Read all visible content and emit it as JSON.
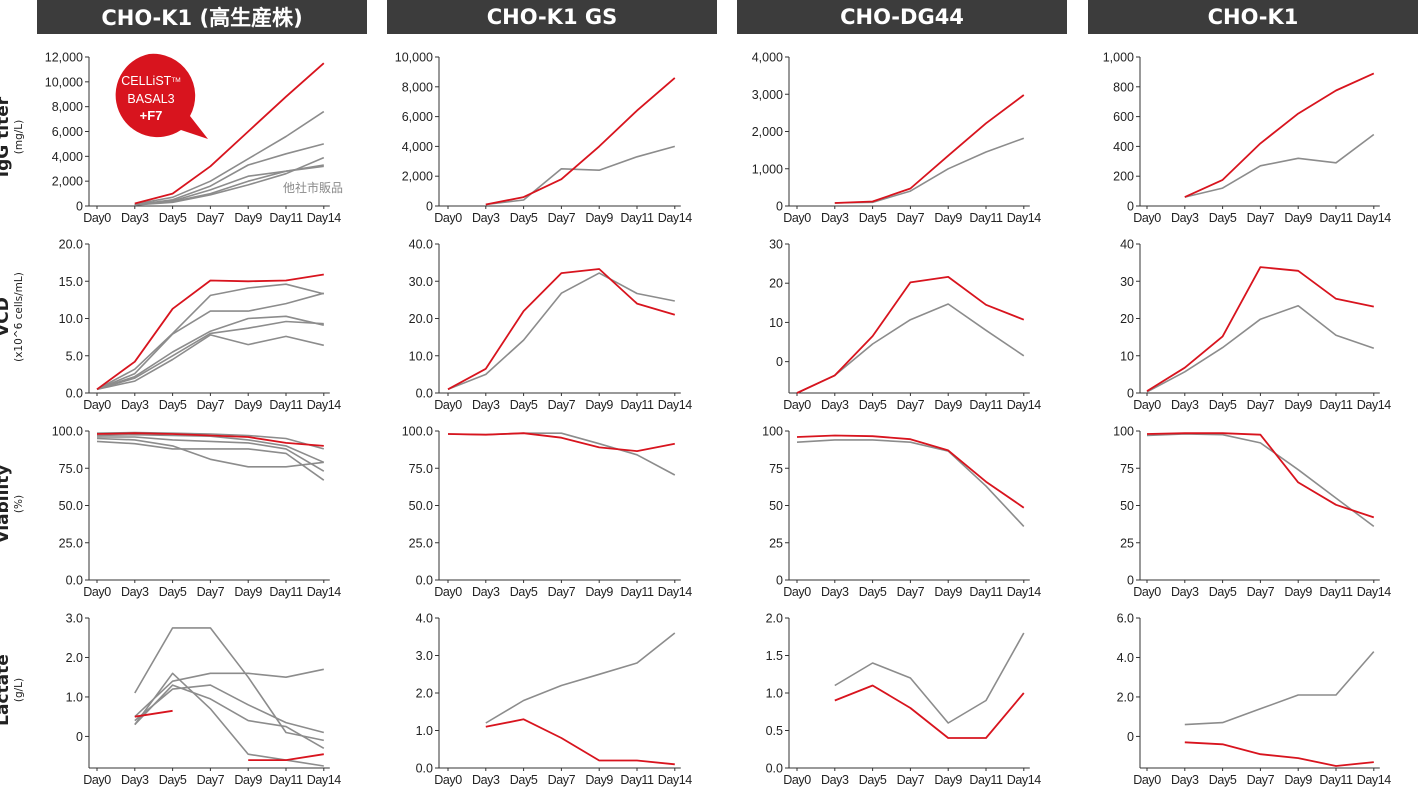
{
  "colors": {
    "header_bg": "#3c3c3c",
    "target": "#d8141e",
    "competitor": "#8c8c8c",
    "axis": "#333333"
  },
  "columns": [
    {
      "title": "CHO-K1 (高生産株)"
    },
    {
      "title": "CHO-K1 GS"
    },
    {
      "title": "CHO-DG44"
    },
    {
      "title": "CHO-K1"
    }
  ],
  "rows": [
    {
      "label": "IgG titer",
      "unit": "(mg/L)"
    },
    {
      "label": "VCD",
      "unit": "(x10^6 cells/mL)"
    },
    {
      "label": "Viability",
      "unit": "(%)"
    },
    {
      "label": "Lactate",
      "unit": "(g/L)"
    }
  ],
  "callout": {
    "line1": "CELLiST",
    "tm": "TM",
    "line2": "BASAL3",
    "line3": "+F7"
  },
  "annotation": "他社市販品",
  "chart_data": [
    {
      "type": "line",
      "col": 0,
      "row": 0,
      "categories": [
        "Day0",
        "Day3",
        "Day5",
        "Day7",
        "Day9",
        "Day11",
        "Day14"
      ],
      "ylim": [
        0,
        12000
      ],
      "yticks": [
        "0",
        "2,000",
        "4,000",
        "6,000",
        "8,000",
        "10,000",
        "12,000"
      ],
      "series": [
        {
          "name": "CELLiST BASAL3 +F7",
          "highlight": true,
          "values": [
            null,
            200,
            1000,
            3200,
            6000,
            8800,
            11500
          ]
        },
        {
          "highlight": false,
          "values": [
            null,
            150,
            700,
            2000,
            3800,
            5600,
            7600
          ]
        },
        {
          "highlight": false,
          "values": [
            null,
            100,
            500,
            1600,
            3300,
            4200,
            5000
          ]
        },
        {
          "highlight": false,
          "values": [
            null,
            100,
            400,
            1300,
            2400,
            2800,
            3300
          ]
        },
        {
          "highlight": false,
          "values": [
            null,
            80,
            300,
            900,
            1700,
            2600,
            3900
          ]
        },
        {
          "highlight": false,
          "values": [
            null,
            100,
            350,
            1000,
            2000,
            2800,
            3200
          ]
        }
      ]
    },
    {
      "type": "line",
      "col": 1,
      "row": 0,
      "categories": [
        "Day0",
        "Day3",
        "Day5",
        "Day7",
        "Day9",
        "Day11",
        "Day14"
      ],
      "ylim": [
        0,
        10000
      ],
      "yticks": [
        "0",
        "2,000",
        "4,000",
        "6,000",
        "8,000",
        "10,000"
      ],
      "series": [
        {
          "highlight": true,
          "values": [
            null,
            100,
            600,
            1800,
            4000,
            6400,
            8600
          ]
        },
        {
          "highlight": false,
          "values": [
            null,
            100,
            400,
            2500,
            2400,
            3300,
            4000
          ]
        }
      ]
    },
    {
      "type": "line",
      "col": 2,
      "row": 0,
      "categories": [
        "Day0",
        "Day3",
        "Day5",
        "Day7",
        "Day9",
        "Day11",
        "Day14"
      ],
      "ylim": [
        0,
        4000
      ],
      "yticks": [
        "0",
        "1,000",
        "2,000",
        "3,000",
        "4,000"
      ],
      "series": [
        {
          "highlight": true,
          "values": [
            null,
            80,
            120,
            470,
            1350,
            2220,
            2980
          ]
        },
        {
          "highlight": false,
          "values": [
            null,
            80,
            100,
            400,
            1000,
            1450,
            1820
          ]
        }
      ]
    },
    {
      "type": "line",
      "col": 3,
      "row": 0,
      "categories": [
        "Day0",
        "Day3",
        "Day5",
        "Day7",
        "Day9",
        "Day11",
        "Day14"
      ],
      "ylim": [
        0,
        1000
      ],
      "yticks": [
        "0",
        "200",
        "400",
        "600",
        "800",
        "1,000"
      ],
      "series": [
        {
          "highlight": true,
          "values": [
            null,
            60,
            175,
            420,
            620,
            775,
            890
          ]
        },
        {
          "highlight": false,
          "values": [
            null,
            60,
            120,
            270,
            320,
            290,
            480
          ]
        }
      ]
    },
    {
      "type": "line",
      "col": 0,
      "row": 1,
      "categories": [
        "Day0",
        "Day3",
        "Day5",
        "Day7",
        "Day9",
        "Day11",
        "Day14"
      ],
      "ylim": [
        0,
        20
      ],
      "yticks": [
        "0.0",
        "5.0",
        "10.0",
        "15.0",
        "20.0"
      ],
      "series": [
        {
          "highlight": true,
          "values": [
            0.5,
            4.2,
            11.3,
            15.1,
            15.0,
            15.1,
            15.9
          ]
        },
        {
          "highlight": false,
          "values": [
            0.5,
            3.2,
            8.0,
            13.1,
            14.1,
            14.6,
            13.3
          ]
        },
        {
          "highlight": false,
          "values": [
            0.5,
            2.6,
            7.9,
            11.0,
            11.0,
            12.0,
            13.4
          ]
        },
        {
          "highlight": false,
          "values": [
            0.5,
            2.2,
            5.5,
            8.3,
            10.0,
            10.3,
            9.1
          ]
        },
        {
          "highlight": false,
          "values": [
            0.5,
            2.0,
            5.0,
            8.0,
            8.7,
            9.6,
            9.3
          ]
        },
        {
          "highlight": false,
          "values": [
            0.5,
            1.6,
            4.5,
            7.8,
            6.5,
            7.6,
            6.4
          ]
        }
      ]
    },
    {
      "type": "line",
      "col": 1,
      "row": 1,
      "categories": [
        "Day0",
        "Day3",
        "Day5",
        "Day7",
        "Day9",
        "Day11",
        "Day14"
      ],
      "ylim": [
        0,
        40
      ],
      "yticks": [
        "0.0",
        "10.0",
        "20.0",
        "30.0",
        "40.0"
      ],
      "series": [
        {
          "highlight": true,
          "values": [
            1.0,
            6.5,
            22.0,
            32.2,
            33.3,
            24.0,
            21.0
          ]
        },
        {
          "highlight": false,
          "values": [
            1.0,
            5.0,
            14.2,
            26.8,
            32.2,
            26.7,
            24.7
          ]
        }
      ]
    },
    {
      "type": "line",
      "col": 2,
      "row": 1,
      "categories": [
        "Day0",
        "Day3",
        "Day5",
        "Day7",
        "Day9",
        "Day11",
        "Day14"
      ],
      "ylim": [
        -8,
        30
      ],
      "yticks": [
        "0",
        "10",
        "20",
        "30"
      ],
      "series": [
        {
          "highlight": true,
          "values": [
            -8,
            -3.5,
            6.5,
            20.2,
            21.6,
            14.5,
            10.7
          ]
        },
        {
          "highlight": false,
          "values": [
            -8,
            -3.5,
            4.5,
            10.7,
            14.7,
            8.0,
            1.5
          ]
        }
      ]
    },
    {
      "type": "line",
      "col": 3,
      "row": 1,
      "categories": [
        "Day0",
        "Day3",
        "Day5",
        "Day7",
        "Day9",
        "Day11",
        "Day14"
      ],
      "ylim": [
        0,
        40
      ],
      "yticks": [
        "0",
        "10",
        "20",
        "30",
        "40"
      ],
      "series": [
        {
          "highlight": true,
          "values": [
            0.5,
            6.8,
            15.2,
            33.8,
            32.8,
            25.3,
            23.2
          ]
        },
        {
          "highlight": false,
          "values": [
            0.3,
            5.7,
            12.2,
            19.8,
            23.4,
            15.5,
            12.0
          ]
        }
      ]
    },
    {
      "type": "line",
      "col": 0,
      "row": 2,
      "categories": [
        "Day0",
        "Day3",
        "Day5",
        "Day7",
        "Day9",
        "Day11",
        "Day14"
      ],
      "ylim": [
        0,
        100
      ],
      "yticks": [
        "0.0",
        "25.0",
        "50.0",
        "75.0",
        "100.0"
      ],
      "series": [
        {
          "highlight": true,
          "values": [
            98,
            98.5,
            98,
            97,
            96,
            92,
            90
          ]
        },
        {
          "highlight": false,
          "values": [
            98.5,
            99,
            98.5,
            98,
            97,
            95,
            88
          ]
        },
        {
          "highlight": false,
          "values": [
            97,
            97.5,
            97,
            96.5,
            94,
            90,
            79
          ]
        },
        {
          "highlight": false,
          "values": [
            96,
            96,
            94,
            93,
            92,
            88,
            73
          ]
        },
        {
          "highlight": false,
          "values": [
            93,
            91.5,
            88,
            88,
            88,
            85,
            67
          ]
        },
        {
          "highlight": false,
          "values": [
            95,
            94,
            90,
            81,
            76,
            76,
            79
          ]
        }
      ]
    },
    {
      "type": "line",
      "col": 1,
      "row": 2,
      "categories": [
        "Day0",
        "Day3",
        "Day5",
        "Day7",
        "Day9",
        "Day11",
        "Day14"
      ],
      "ylim": [
        0,
        100
      ],
      "yticks": [
        "0.0",
        "25.0",
        "50.0",
        "75.0",
        "100.0"
      ],
      "series": [
        {
          "highlight": true,
          "values": [
            98,
            97.5,
            98.5,
            95.5,
            89,
            86.5,
            91.5
          ]
        },
        {
          "highlight": false,
          "values": [
            98,
            97.5,
            98.5,
            98.5,
            91.5,
            84,
            70.5
          ]
        }
      ]
    },
    {
      "type": "line",
      "col": 2,
      "row": 2,
      "categories": [
        "Day0",
        "Day3",
        "Day5",
        "Day7",
        "Day9",
        "Day11",
        "Day14"
      ],
      "ylim": [
        0,
        100
      ],
      "yticks": [
        "0",
        "25",
        "50",
        "75",
        "100"
      ],
      "series": [
        {
          "highlight": true,
          "values": [
            96,
            97,
            96.5,
            94.5,
            87,
            66,
            48.5
          ]
        },
        {
          "highlight": false,
          "values": [
            92.5,
            94,
            94,
            92.5,
            86.5,
            63,
            36
          ]
        }
      ]
    },
    {
      "type": "line",
      "col": 3,
      "row": 2,
      "categories": [
        "Day0",
        "Day3",
        "Day5",
        "Day7",
        "Day9",
        "Day11",
        "Day14"
      ],
      "ylim": [
        0,
        100
      ],
      "yticks": [
        "0",
        "25",
        "50",
        "75",
        "100"
      ],
      "series": [
        {
          "highlight": true,
          "values": [
            98,
            98.5,
            98.5,
            97.5,
            65.5,
            50.5,
            42
          ]
        },
        {
          "highlight": false,
          "values": [
            97,
            98,
            97.5,
            92,
            74,
            55,
            36
          ]
        }
      ]
    },
    {
      "type": "line",
      "col": 0,
      "row": 3,
      "categories": [
        "Day0",
        "Day3",
        "Day5",
        "Day7",
        "Day9",
        "Day11",
        "Day14"
      ],
      "ylim": [
        -0.8,
        3.0
      ],
      "yticks": [
        "0",
        "1.0",
        "2.0",
        "3.0"
      ],
      "series": [
        {
          "highlight": true,
          "values": [
            null,
            0.5,
            0.65,
            null,
            -0.6,
            -0.6,
            -0.45
          ]
        },
        {
          "highlight": false,
          "values": [
            null,
            1.1,
            2.75,
            2.75,
            1.5,
            0.1,
            -0.1
          ]
        },
        {
          "highlight": false,
          "values": [
            null,
            0.3,
            1.6,
            0.7,
            -0.45,
            -0.6,
            -0.75
          ]
        },
        {
          "highlight": false,
          "values": [
            null,
            0.5,
            1.4,
            1.6,
            1.6,
            1.5,
            1.7
          ]
        },
        {
          "highlight": false,
          "values": [
            null,
            0.4,
            1.2,
            1.3,
            0.8,
            0.35,
            0.1
          ]
        },
        {
          "highlight": false,
          "values": [
            null,
            0.3,
            1.3,
            0.95,
            0.4,
            0.25,
            -0.3
          ]
        }
      ]
    },
    {
      "type": "line",
      "col": 1,
      "row": 3,
      "categories": [
        "Day0",
        "Day3",
        "Day5",
        "Day7",
        "Day9",
        "Day11",
        "Day14"
      ],
      "ylim": [
        0,
        4
      ],
      "yticks": [
        "0.0",
        "1.0",
        "2.0",
        "3.0",
        "4.0"
      ],
      "series": [
        {
          "highlight": true,
          "values": [
            null,
            1.1,
            1.3,
            0.8,
            0.2,
            0.2,
            0.1
          ]
        },
        {
          "highlight": false,
          "values": [
            null,
            1.2,
            1.8,
            2.2,
            2.5,
            2.8,
            3.6
          ]
        }
      ]
    },
    {
      "type": "line",
      "col": 2,
      "row": 3,
      "categories": [
        "Day0",
        "Day3",
        "Day5",
        "Day7",
        "Day9",
        "Day11",
        "Day14"
      ],
      "ylim": [
        0,
        2.0
      ],
      "yticks": [
        "0.0",
        "0.5",
        "1.0",
        "1.5",
        "2.0"
      ],
      "series": [
        {
          "highlight": true,
          "values": [
            null,
            0.9,
            1.1,
            0.8,
            0.4,
            0.4,
            1.0
          ]
        },
        {
          "highlight": false,
          "values": [
            null,
            1.1,
            1.4,
            1.2,
            0.6,
            0.9,
            1.8
          ]
        }
      ]
    },
    {
      "type": "line",
      "col": 3,
      "row": 3,
      "categories": [
        "Day0",
        "Day3",
        "Day5",
        "Day7",
        "Day9",
        "Day11",
        "Day14"
      ],
      "ylim": [
        -1.6,
        6.0
      ],
      "yticks": [
        "0",
        "2.0",
        "4.0",
        "6.0"
      ],
      "series": [
        {
          "highlight": true,
          "values": [
            null,
            -0.3,
            -0.4,
            -0.9,
            -1.1,
            -1.5,
            -1.3
          ]
        },
        {
          "highlight": false,
          "values": [
            null,
            0.6,
            0.7,
            1.4,
            2.1,
            2.1,
            4.3
          ]
        }
      ]
    }
  ]
}
